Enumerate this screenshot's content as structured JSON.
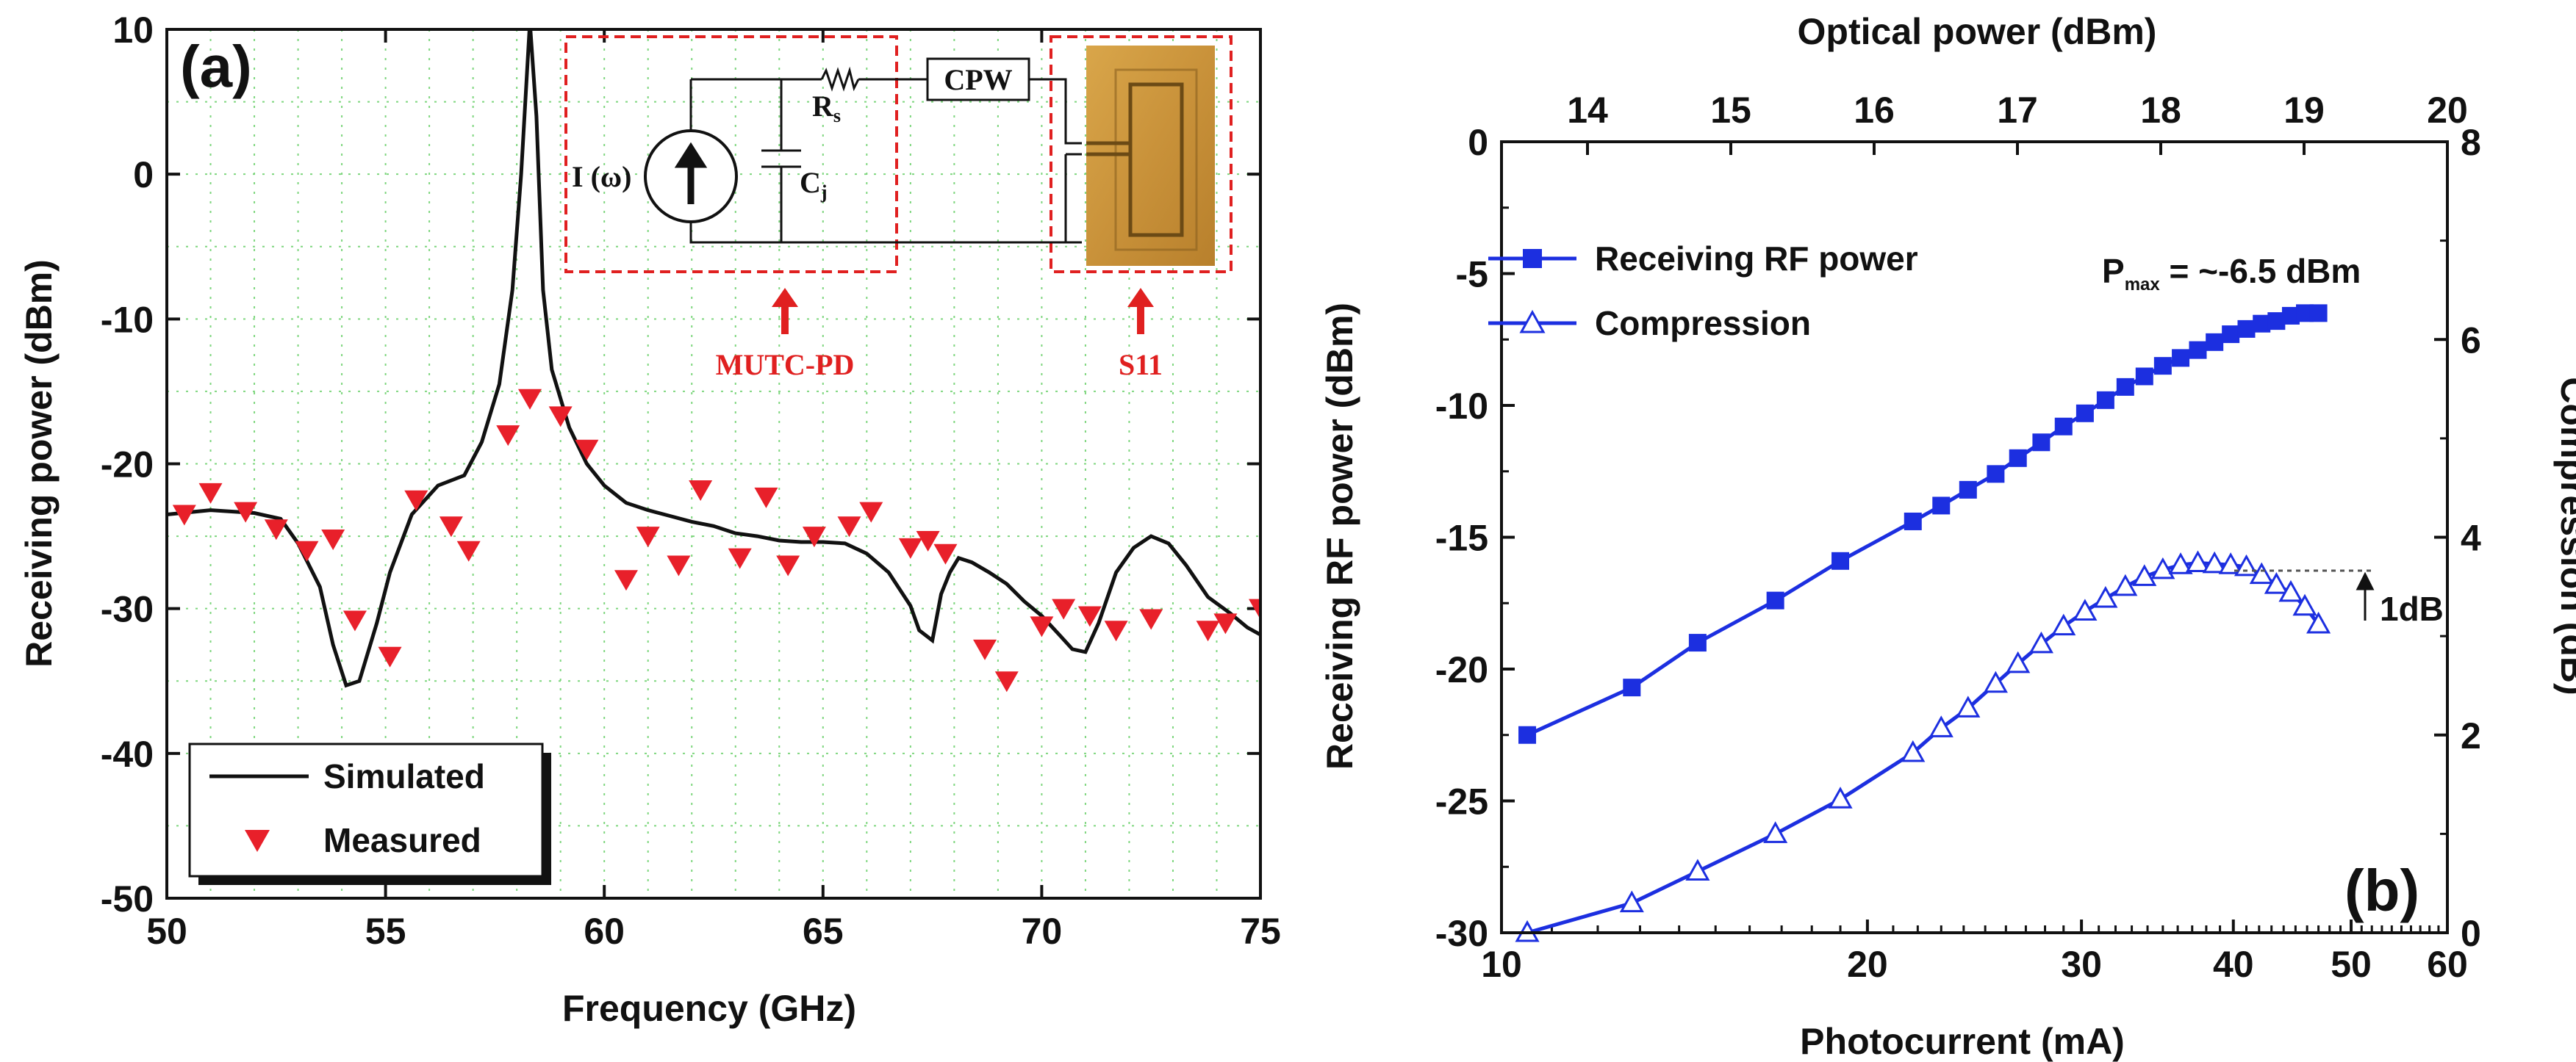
{
  "chart_data": [
    {
      "type": "line",
      "panel_label": "(a)",
      "xlabel": "Frequency (GHz)",
      "ylabel": "Receiving power (dBm)",
      "xlim": [
        50,
        75
      ],
      "ylim": [
        -50,
        10
      ],
      "xticks": [
        50,
        55,
        60,
        65,
        70,
        75
      ],
      "yticks": [
        10,
        0,
        -10,
        -20,
        -30,
        -40,
        -50
      ],
      "grid": "dotted",
      "legend_position": "bottom-left",
      "series": [
        {
          "name": "Simulated",
          "style": "line",
          "color": "#111111",
          "x": [
            50.0,
            51.0,
            52.0,
            52.6,
            53.0,
            53.5,
            53.8,
            54.1,
            54.4,
            54.8,
            55.1,
            55.6,
            56.2,
            56.8,
            57.2,
            57.6,
            57.9,
            58.1,
            58.3,
            58.45,
            58.6,
            58.8,
            59.2,
            59.6,
            60.0,
            60.5,
            61.0,
            61.5,
            62.0,
            62.5,
            63.0,
            63.5,
            64.0,
            64.5,
            65.0,
            65.5,
            66.0,
            66.5,
            67.0,
            67.2,
            67.5,
            67.7,
            67.9,
            68.1,
            68.4,
            68.8,
            69.2,
            69.6,
            70.0,
            70.4,
            70.7,
            71.0,
            71.3,
            71.7,
            72.1,
            72.5,
            72.9,
            73.3,
            73.8,
            74.3,
            74.7,
            75.0
          ],
          "y": [
            -23.5,
            -23.2,
            -23.4,
            -23.8,
            -25.5,
            -28.5,
            -32.5,
            -35.3,
            -35.0,
            -31.0,
            -27.5,
            -23.5,
            -21.5,
            -20.8,
            -18.5,
            -14.5,
            -8.0,
            0.0,
            10.5,
            4.0,
            -8.0,
            -13.5,
            -17.5,
            -20.0,
            -21.5,
            -22.7,
            -23.2,
            -23.6,
            -24.0,
            -24.3,
            -24.8,
            -25.0,
            -25.3,
            -25.4,
            -25.4,
            -25.5,
            -26.2,
            -27.5,
            -29.8,
            -31.5,
            -32.2,
            -29.0,
            -27.5,
            -26.5,
            -26.8,
            -27.5,
            -28.3,
            -29.5,
            -30.5,
            -31.8,
            -32.8,
            -33.0,
            -31.0,
            -27.5,
            -25.8,
            -25.0,
            -25.5,
            -27.0,
            -29.2,
            -30.3,
            -31.3,
            -31.8
          ]
        },
        {
          "name": "Measured",
          "style": "marker-triangle-down",
          "color": "#e8202a",
          "x": [
            50.4,
            51.0,
            51.8,
            52.5,
            53.2,
            53.8,
            54.3,
            55.1,
            55.7,
            56.5,
            56.9,
            57.8,
            58.3,
            59.0,
            59.6,
            60.5,
            61.0,
            61.7,
            62.2,
            63.1,
            63.7,
            64.2,
            64.8,
            65.6,
            66.1,
            67.0,
            67.4,
            67.8,
            68.7,
            69.2,
            70.0,
            70.5,
            71.1,
            71.7,
            72.5,
            73.8,
            74.2,
            75.0
          ],
          "y": [
            -23.5,
            -22.0,
            -23.3,
            -24.5,
            -26.0,
            -25.2,
            -30.8,
            -33.3,
            -22.5,
            -24.3,
            -26.0,
            -18.0,
            -15.5,
            -16.7,
            -19.0,
            -28.0,
            -25.0,
            -27.0,
            -21.8,
            -26.5,
            -22.3,
            -27.0,
            -25.0,
            -24.3,
            -23.3,
            -25.8,
            -25.3,
            -26.2,
            -32.8,
            -35.0,
            -31.2,
            -30.0,
            -30.5,
            -31.5,
            -30.7,
            -31.5,
            -31.0,
            -30.0
          ]
        }
      ],
      "inset": {
        "source_label": "I (ω)",
        "rs_label": "R",
        "rs_sub": "s",
        "cj_label": "C",
        "cj_sub": "j",
        "cpw_label": "CPW",
        "pd_label": "MUTC-PD",
        "s11_label": "S11"
      }
    },
    {
      "type": "line",
      "panel_label": "(b)",
      "xlabel": "Photocurrent (mA)",
      "x_scale": "log",
      "xlim": [
        10,
        60
      ],
      "xticks": [
        10,
        20,
        30,
        40,
        50,
        60
      ],
      "ylabel": "Receiving RF power (dBm)",
      "ylim": [
        -30,
        0
      ],
      "yticks": [
        0,
        -5,
        -10,
        -15,
        -20,
        -25,
        -30
      ],
      "y2label": "Compression (dB)",
      "y2lim": [
        0,
        8
      ],
      "y2ticks": [
        0,
        2,
        4,
        6,
        8
      ],
      "x2label": "Optical power (dBm)",
      "x2ticks": [
        14,
        15,
        16,
        17,
        18,
        19,
        20
      ],
      "legend_position": "top-left",
      "annotation_pmax": "P",
      "annotation_pmax_sub": "max",
      "annotation_pmax_value": " = ~-6.5 dBm",
      "annotation_1db": "1dB",
      "series": [
        {
          "name": "Receiving RF power",
          "axis": "left",
          "style": "line-square",
          "color": "#1c2fe0",
          "x": [
            10.5,
            12.8,
            14.5,
            16.8,
            19.0,
            21.8,
            23.0,
            24.2,
            25.5,
            26.6,
            27.8,
            29.0,
            30.2,
            31.4,
            32.6,
            33.8,
            35.0,
            36.2,
            37.4,
            38.6,
            39.8,
            41.0,
            42.2,
            43.4,
            44.6,
            45.8,
            47.0
          ],
          "y": [
            -22.5,
            -20.7,
            -19.0,
            -17.4,
            -15.9,
            -14.4,
            -13.8,
            -13.2,
            -12.6,
            -12.0,
            -11.4,
            -10.8,
            -10.3,
            -9.8,
            -9.3,
            -8.9,
            -8.5,
            -8.2,
            -7.9,
            -7.6,
            -7.3,
            -7.1,
            -6.9,
            -6.8,
            -6.6,
            -6.5,
            -6.5
          ]
        },
        {
          "name": "Compression",
          "axis": "right",
          "style": "line-open-triangle",
          "color": "#1c2fe0",
          "x": [
            10.5,
            12.8,
            14.5,
            16.8,
            19.0,
            21.8,
            23.0,
            24.2,
            25.5,
            26.6,
            27.8,
            29.0,
            30.2,
            31.4,
            32.6,
            33.8,
            35.0,
            36.2,
            37.4,
            38.6,
            39.8,
            41.0,
            42.2,
            43.4,
            44.6,
            45.8,
            47.0
          ],
          "y": [
            0.0,
            0.3,
            0.62,
            1.0,
            1.35,
            1.82,
            2.07,
            2.27,
            2.52,
            2.72,
            2.92,
            3.1,
            3.25,
            3.38,
            3.5,
            3.6,
            3.67,
            3.72,
            3.74,
            3.73,
            3.72,
            3.7,
            3.62,
            3.52,
            3.44,
            3.3,
            3.12
          ]
        }
      ]
    }
  ]
}
